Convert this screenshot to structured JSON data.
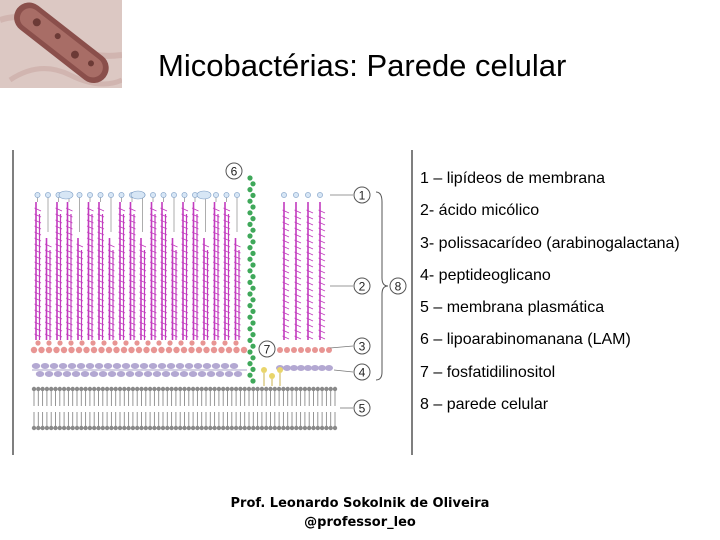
{
  "title": "Micobactérias: Parede celular",
  "legend": [
    "1 – lipídeos de membrana",
    "2- ácido micólico",
    "3- polissacarídeo (arabinogalactana)",
    "4- peptideoglicano",
    "5 – membrana plasmática",
    "6 – lipoarabinomanana (LAM)",
    "7 – fosfatidilinositol",
    "8 – parede celular"
  ],
  "figure_labels": {
    "n1": "1",
    "n2": "2",
    "n3": "3",
    "n4": "4",
    "n5": "5",
    "n6": "6",
    "n7": "7",
    "n8": "8"
  },
  "credits": {
    "author": "Prof. Leonardo Sokolnik de Oliveira",
    "handle": "@professor_leo"
  },
  "colors": {
    "mycolic": "#c23bbe",
    "arabinogalactan": "#e89593",
    "peptidoglycan": "#b3a8d2",
    "membrane": "#8a8a8a",
    "lam": "#3fa85a",
    "pi": "#e9d56b",
    "head_fill": "#d7e6f5"
  },
  "icons": {
    "photo": "mycobacterium-micrograph"
  }
}
